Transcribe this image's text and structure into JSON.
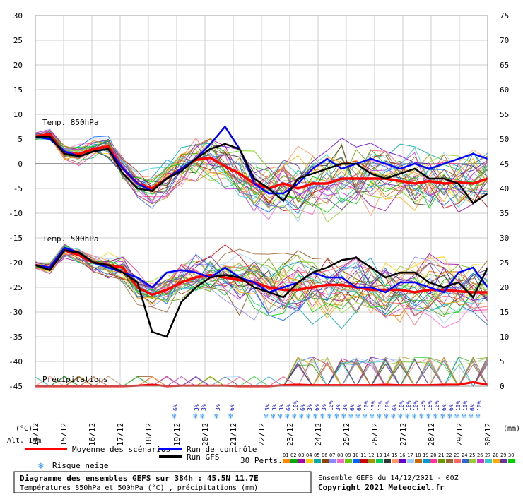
{
  "chart_data": {
    "type": "line",
    "title": "Diagramme des ensembles GEFS sur 384h : 45.5N 11.7E",
    "subtitle": "Températures 850hPa et 500hPa (°C) , précipitations (mm)",
    "credit_run": "Ensemble GEFS du 14/12/2021 - 00Z",
    "copyright": "Copyright 2021 Meteociel.fr",
    "altitude_label": "Alt. 14m",
    "xlabel_left": "(°C)",
    "xlabel_right": "(mm)",
    "left_ticks": [
      30,
      25,
      20,
      15,
      10,
      5,
      0,
      -5,
      -10,
      -15,
      -20,
      -25,
      -30,
      -35,
      -40,
      -45
    ],
    "right_ticks": [
      75,
      70,
      65,
      60,
      55,
      50,
      45,
      40,
      35,
      30,
      25,
      20,
      15,
      10,
      5,
      0
    ],
    "ylim": [
      -45,
      30
    ],
    "x_dates": [
      "14/12",
      "15/12",
      "16/12",
      "17/12",
      "18/12",
      "19/12",
      "20/12",
      "21/12",
      "22/12",
      "23/12",
      "24/12",
      "25/12",
      "26/12",
      "27/12",
      "28/12",
      "29/12",
      "30/12"
    ],
    "panel_labels": {
      "t850": "Temp. 850hPa",
      "t500": "Temp. 500hPa",
      "precip": "Précipitations"
    },
    "series": [
      {
        "name": "Moyenne des scénarios",
        "color": "#ff0000",
        "t850": [
          5.5,
          6,
          2,
          2,
          3,
          3.5,
          -1,
          -4,
          -5,
          -3,
          -1,
          0.8,
          1.2,
          -0.5,
          -2,
          -4,
          -5,
          -4,
          -5,
          -4,
          -4,
          -3,
          -3,
          -3,
          -3,
          -3.5,
          -4,
          -3.5,
          -4,
          -3.8,
          -4,
          -3
        ],
        "t500": [
          -20.5,
          -21,
          -17.5,
          -18.5,
          -20,
          -20.5,
          -21,
          -25,
          -26.5,
          -25.5,
          -24,
          -23,
          -22.5,
          -23,
          -23.5,
          -24,
          -25,
          -25.5,
          -25.5,
          -25,
          -24.5,
          -24.5,
          -25,
          -25.5,
          -25.5,
          -25.5,
          -26,
          -25.5,
          -25.5,
          -25.8,
          -26,
          -26
        ]
      },
      {
        "name": "Run de contrôle",
        "color": "#0000ff",
        "t850": [
          5.5,
          5,
          2.5,
          1.5,
          2.5,
          3,
          -1,
          -4,
          -5.5,
          -3,
          -1,
          1,
          4,
          7.5,
          3,
          -4,
          -6,
          -6,
          -4,
          -1,
          1,
          -1,
          0,
          1,
          0,
          -1,
          0,
          -1,
          0,
          1,
          2,
          1
        ],
        "t500": [
          -20.5,
          -21,
          -17,
          -18,
          -20,
          -21,
          -22,
          -23,
          -25,
          -22,
          -21.5,
          -22,
          -23,
          -21,
          -23,
          -24,
          -26,
          -25,
          -24,
          -22,
          -23,
          -23,
          -25,
          -25,
          -26,
          -24,
          -24,
          -25,
          -26,
          -22,
          -21,
          -25
        ]
      },
      {
        "name": "Run GFS",
        "color": "#000000",
        "t850": [
          5.5,
          5.5,
          2,
          1.5,
          2.5,
          3,
          -2,
          -5,
          -5.5,
          -3,
          -1.5,
          1,
          3,
          4,
          3,
          -3,
          -5,
          -7.5,
          -3,
          -2,
          -1,
          0,
          0,
          -2,
          -3,
          -2,
          -1,
          -3,
          -3,
          -4,
          -8,
          -6
        ],
        "t500": [
          -20.5,
          -21.5,
          -17.5,
          -18,
          -20,
          -20.5,
          -22,
          -24,
          -34,
          -35,
          -28,
          -25,
          -23,
          -22.5,
          -23,
          -25,
          -26,
          -27,
          -24,
          -22,
          -21,
          -19.5,
          -19,
          -21,
          -23,
          -22,
          -22,
          -24,
          -25,
          -24,
          -27,
          -21
        ]
      }
    ],
    "precip_mean": [
      0,
      0,
      0,
      0,
      0,
      0,
      0,
      0.1,
      0.3,
      0,
      0.1,
      0.1,
      0.1,
      0.1,
      0,
      0,
      0,
      0.2,
      0.3,
      0.2,
      0.2,
      0.2,
      0.2,
      0.2,
      0.3,
      0.2,
      0.2,
      0.2,
      0.3,
      0.3,
      0.8,
      0.3
    ],
    "snow_risk": {
      "label": "Risque neige",
      "percents": [
        "6%",
        "3%",
        "3%",
        "3%",
        "6%",
        "3%",
        "3%",
        "3%",
        "6%",
        "10%",
        "6%",
        "3%",
        "6%",
        "3%",
        "10%",
        "3%",
        "3%",
        "6%",
        "6%",
        "10%",
        "13%",
        "13%",
        "10%",
        "6%",
        "10%",
        "16%",
        "10%",
        "13%",
        "16%",
        "10%",
        "6%",
        "6%",
        "10%",
        "10%",
        "6%",
        "10%"
      ]
    },
    "perturbations": {
      "label": "30 Perts.",
      "ids": [
        "01",
        "02",
        "03",
        "04",
        "05",
        "06",
        "07",
        "08",
        "09",
        "10",
        "11",
        "12",
        "13",
        "14",
        "15",
        "16",
        "17",
        "18",
        "19",
        "20",
        "21",
        "22",
        "23",
        "24",
        "25",
        "26",
        "27",
        "28",
        "29",
        "30"
      ],
      "colors": [
        "#ff8800",
        "#00aa00",
        "#aa00aa",
        "#ffcc00",
        "#00aaaa",
        "#884400",
        "#8888ff",
        "#ff66cc",
        "#66cc00",
        "#0066ff",
        "#cc0000",
        "#999900",
        "#00cc66",
        "#333333",
        "#ff9966",
        "#6600cc",
        "#99ccff",
        "#cc6600",
        "#0099cc",
        "#ff3399",
        "#669900",
        "#996633",
        "#ff6666",
        "#3366cc",
        "#99cc33",
        "#cc33cc",
        "#33cccc",
        "#ffaa00",
        "#663399",
        "#00cc00"
      ]
    },
    "legend": {
      "mean": "Moyenne des scénarios",
      "control": "Run de contrôle",
      "gfs": "Run GFS"
    }
  }
}
